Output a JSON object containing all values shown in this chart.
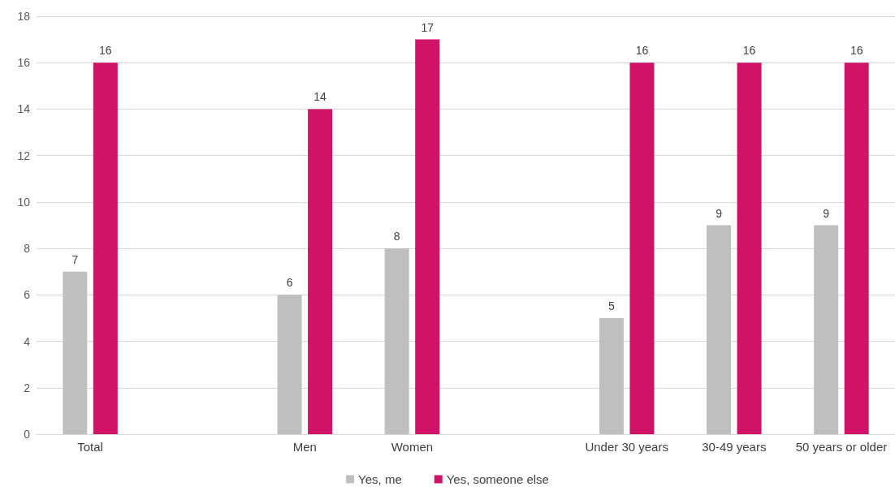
{
  "chart_data": {
    "type": "bar",
    "categories": [
      "Total",
      null,
      "Men",
      "Women",
      null,
      "Under 30 years",
      "30-49 years",
      "50 years or older"
    ],
    "series": [
      {
        "name": "Yes, me",
        "color": "#bfbfbf",
        "values": [
          7,
          null,
          6,
          8,
          null,
          5,
          9,
          9
        ]
      },
      {
        "name": "Yes, someone else",
        "color": "#d01367",
        "values": [
          16,
          null,
          14,
          17,
          null,
          16,
          16,
          16
        ]
      }
    ],
    "ylim": [
      0,
      18
    ],
    "yticks": [
      0,
      2,
      4,
      6,
      8,
      10,
      12,
      14,
      16,
      18
    ],
    "grid": "y",
    "legend": "bottom",
    "data_labels": true
  }
}
